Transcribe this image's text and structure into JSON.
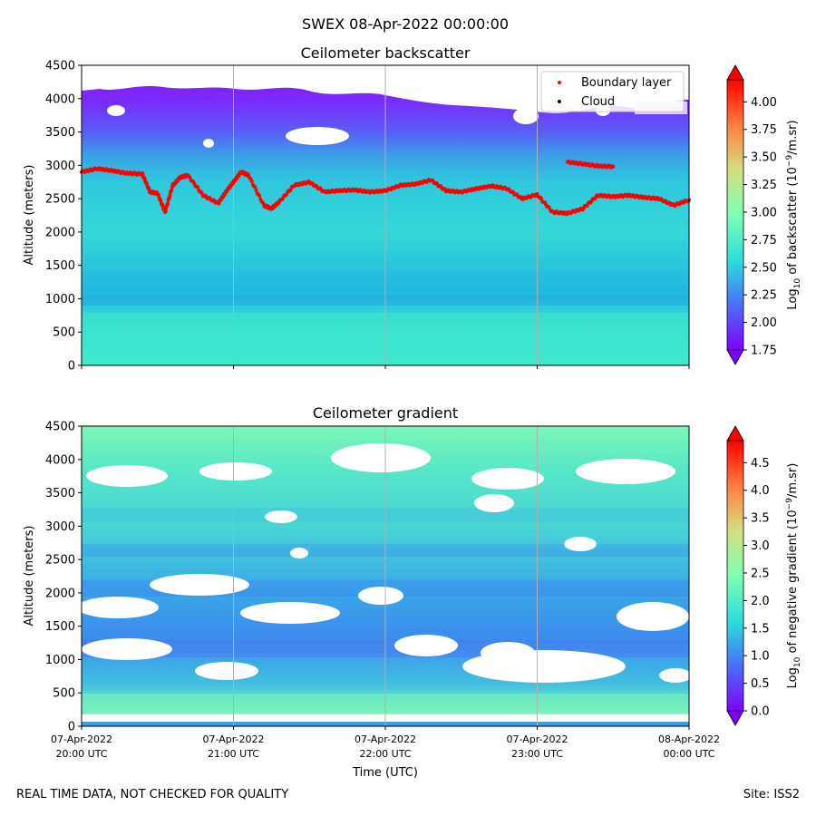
{
  "figure_title": "SWEX 08-Apr-2022 00:00:00",
  "footer": {
    "quality_note": "REAL TIME DATA, NOT CHECKED FOR QUALITY",
    "site": "Site: ISS2"
  },
  "colors": {
    "background_scale": [
      "#8000ff",
      "#4a71f9",
      "#2adddd",
      "#80ffb4",
      "#d4dd80",
      "#ff7f40",
      "#ff0000"
    ],
    "boundary_layer": "#ff0000",
    "cloud": "#000000",
    "grid": "#b0b0b0"
  },
  "chart_data": [
    {
      "type": "heatmap",
      "title": "Ceilometer backscatter",
      "xlabel": "",
      "ylabel": "Altitude (meters)",
      "ylim": [
        0,
        4500
      ],
      "yticks": [
        0,
        500,
        1000,
        1500,
        2000,
        2500,
        3000,
        3500,
        4000,
        4500
      ],
      "xlim_hours": [
        0,
        4
      ],
      "xticks_hours": [
        0,
        1,
        2,
        3,
        4
      ],
      "x_grid": true,
      "colorbar": {
        "label": "Log10 of backscatter (10^-9/m.sr)",
        "label_parts": {
          "pre": "Log",
          "sub": "10",
          "mid": " of backscatter (10",
          "sup": "−9",
          "post": "/m.sr)"
        },
        "min": 1.75,
        "max": 4.2,
        "ticks": [
          1.75,
          2.0,
          2.25,
          2.5,
          2.75,
          3.0,
          3.25,
          3.5,
          3.75,
          4.0
        ],
        "tick_labels": [
          "1.75",
          "2.00",
          "2.25",
          "2.50",
          "2.75",
          "3.00",
          "3.25",
          "3.50",
          "3.75",
          "4.00"
        ]
      },
      "legend": {
        "placement": "top-right",
        "entries": [
          {
            "label": "Boundary layer",
            "color": "#ff0000"
          },
          {
            "label": "Cloud",
            "color": "#000000"
          }
        ]
      },
      "series": [
        {
          "name": "Boundary layer",
          "x_hours": [
            0,
            0.1,
            0.2,
            0.3,
            0.4,
            0.45,
            0.5,
            0.55,
            0.6,
            0.65,
            0.7,
            0.8,
            0.9,
            0.95,
            1.0,
            1.05,
            1.1,
            1.2,
            1.25,
            1.3,
            1.4,
            1.5,
            1.6,
            1.7,
            1.8,
            1.9,
            2.0,
            2.1,
            2.2,
            2.3,
            2.4,
            2.5,
            2.6,
            2.7,
            2.8,
            2.9,
            3.0,
            3.1,
            3.2,
            3.3,
            3.4,
            3.5,
            3.6,
            3.7,
            3.8,
            3.9,
            4.0
          ],
          "altitude_m": [
            2900,
            2950,
            2920,
            2880,
            2870,
            2600,
            2580,
            2300,
            2700,
            2820,
            2850,
            2550,
            2430,
            2600,
            2750,
            2900,
            2850,
            2400,
            2350,
            2450,
            2700,
            2750,
            2600,
            2620,
            2630,
            2600,
            2620,
            2700,
            2720,
            2780,
            2620,
            2600,
            2650,
            2690,
            2650,
            2500,
            2560,
            2300,
            2280,
            2350,
            2550,
            2530,
            2550,
            2520,
            2500,
            2400,
            2480
          ]
        },
        {
          "name": "Boundary layer (upper segment)",
          "x_hours": [
            3.2,
            3.3,
            3.4,
            3.5
          ],
          "altitude_m": [
            3050,
            3020,
            2990,
            2980
          ]
        }
      ]
    },
    {
      "type": "heatmap",
      "title": "Ceilometer gradient",
      "xlabel": "Time (UTC)",
      "ylabel": "Altitude (meters)",
      "ylim": [
        0,
        4500
      ],
      "yticks": [
        0,
        500,
        1000,
        1500,
        2000,
        2500,
        3000,
        3500,
        4000,
        4500
      ],
      "xlim_hours": [
        0,
        4
      ],
      "xticks_hours": [
        0,
        1,
        2,
        3,
        4
      ],
      "x_grid": true,
      "xtick_labels": [
        [
          "07-Apr-2022",
          "20:00 UTC"
        ],
        [
          "07-Apr-2022",
          "21:00 UTC"
        ],
        [
          "07-Apr-2022",
          "22:00 UTC"
        ],
        [
          "07-Apr-2022",
          "23:00 UTC"
        ],
        [
          "08-Apr-2022",
          "00:00 UTC"
        ]
      ],
      "colorbar": {
        "label": "Log10 of negative gradient (10^-9/m.sr)",
        "label_parts": {
          "pre": "Log",
          "sub": "10",
          "mid": " of negative gradient (10",
          "sup": "−9",
          "post": "/m.sr)"
        },
        "min": 0.0,
        "max": 4.9,
        "ticks": [
          0.0,
          0.5,
          1.0,
          1.5,
          2.0,
          2.5,
          3.0,
          3.5,
          4.0,
          4.5
        ],
        "tick_labels": [
          "0.0",
          "0.5",
          "1.0",
          "1.5",
          "2.0",
          "2.5",
          "3.0",
          "3.5",
          "4.0",
          "4.5"
        ]
      }
    }
  ]
}
